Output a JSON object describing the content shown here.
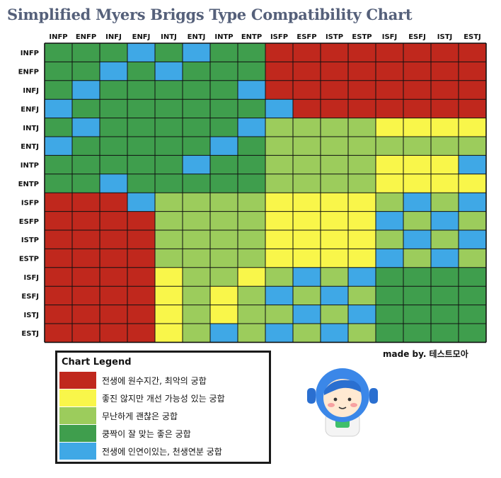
{
  "title": "Simplified Myers Briggs Type Compatibility Chart",
  "credit": "made by. 테스트모아",
  "colors": {
    "R": "#c0281d",
    "Y": "#f9f64a",
    "L": "#9ccc5c",
    "G": "#3f9e4d",
    "B": "#3fa8e6",
    "grid": "#111111"
  },
  "chart_data": {
    "type": "heatmap",
    "title": "Simplified Myers Briggs Type Compatibility Chart",
    "columns": [
      "INFP",
      "ENFP",
      "INFJ",
      "ENFJ",
      "INTJ",
      "ENTJ",
      "INTP",
      "ENTP",
      "ISFP",
      "ESFP",
      "ISTP",
      "ESTP",
      "ISFJ",
      "ESFJ",
      "ISTJ",
      "ESTJ"
    ],
    "rows": [
      "INFP",
      "ENFP",
      "INFJ",
      "ENFJ",
      "INTJ",
      "ENTJ",
      "INTP",
      "ENTP",
      "ISFP",
      "ESFP",
      "ISTP",
      "ESTP",
      "ISFJ",
      "ESFJ",
      "ISTJ",
      "ESTJ"
    ],
    "value_key": {
      "R": "전생에 원수지간, 최악의 궁합",
      "Y": "좋진 않지만 개선 가능성 있는 궁합",
      "L": "무난하게 괜찮은 궁합",
      "G": "쿵짝이 잘 맞는 좋은 궁합",
      "B": "전생에 인연이있는, 천생연분 궁합"
    },
    "matrix": [
      [
        "G",
        "G",
        "G",
        "B",
        "G",
        "B",
        "G",
        "G",
        "R",
        "R",
        "R",
        "R",
        "R",
        "R",
        "R",
        "R"
      ],
      [
        "G",
        "G",
        "B",
        "G",
        "B",
        "G",
        "G",
        "G",
        "R",
        "R",
        "R",
        "R",
        "R",
        "R",
        "R",
        "R"
      ],
      [
        "G",
        "B",
        "G",
        "G",
        "G",
        "G",
        "G",
        "B",
        "R",
        "R",
        "R",
        "R",
        "R",
        "R",
        "R",
        "R"
      ],
      [
        "B",
        "G",
        "G",
        "G",
        "G",
        "G",
        "G",
        "G",
        "B",
        "R",
        "R",
        "R",
        "R",
        "R",
        "R",
        "R"
      ],
      [
        "G",
        "B",
        "G",
        "G",
        "G",
        "G",
        "G",
        "B",
        "L",
        "L",
        "L",
        "L",
        "Y",
        "Y",
        "Y",
        "Y"
      ],
      [
        "B",
        "G",
        "G",
        "G",
        "G",
        "G",
        "B",
        "G",
        "L",
        "L",
        "L",
        "L",
        "L",
        "L",
        "L",
        "L"
      ],
      [
        "G",
        "G",
        "G",
        "G",
        "G",
        "B",
        "G",
        "G",
        "L",
        "L",
        "L",
        "L",
        "Y",
        "Y",
        "Y",
        "B"
      ],
      [
        "G",
        "G",
        "B",
        "G",
        "G",
        "G",
        "G",
        "G",
        "L",
        "L",
        "L",
        "L",
        "Y",
        "Y",
        "Y",
        "Y"
      ],
      [
        "R",
        "R",
        "R",
        "B",
        "L",
        "L",
        "L",
        "L",
        "Y",
        "Y",
        "Y",
        "Y",
        "L",
        "B",
        "L",
        "B"
      ],
      [
        "R",
        "R",
        "R",
        "R",
        "L",
        "L",
        "L",
        "L",
        "Y",
        "Y",
        "Y",
        "Y",
        "B",
        "L",
        "B",
        "L"
      ],
      [
        "R",
        "R",
        "R",
        "R",
        "L",
        "L",
        "L",
        "L",
        "Y",
        "Y",
        "Y",
        "Y",
        "L",
        "B",
        "L",
        "B"
      ],
      [
        "R",
        "R",
        "R",
        "R",
        "L",
        "L",
        "L",
        "L",
        "Y",
        "Y",
        "Y",
        "Y",
        "B",
        "L",
        "B",
        "L"
      ],
      [
        "R",
        "R",
        "R",
        "R",
        "Y",
        "L",
        "L",
        "Y",
        "L",
        "B",
        "L",
        "B",
        "G",
        "G",
        "G",
        "G"
      ],
      [
        "R",
        "R",
        "R",
        "R",
        "Y",
        "L",
        "Y",
        "L",
        "B",
        "L",
        "B",
        "L",
        "G",
        "G",
        "G",
        "G"
      ],
      [
        "R",
        "R",
        "R",
        "R",
        "Y",
        "L",
        "Y",
        "L",
        "L",
        "B",
        "L",
        "B",
        "G",
        "G",
        "G",
        "G"
      ],
      [
        "R",
        "R",
        "R",
        "R",
        "Y",
        "L",
        "B",
        "L",
        "B",
        "L",
        "B",
        "L",
        "G",
        "G",
        "G",
        "G"
      ]
    ]
  },
  "legend": {
    "title": "Chart Legend",
    "items": [
      {
        "key": "R",
        "label": "전생에 원수지간, 최악의 궁합"
      },
      {
        "key": "Y",
        "label": "좋진 않지만 개선 가능성 있는 궁합"
      },
      {
        "key": "L",
        "label": "무난하게 괜찮은 궁합"
      },
      {
        "key": "G",
        "label": "쿵짝이 잘 맞는 좋은 궁합"
      },
      {
        "key": "B",
        "label": "전생에 인연이있는, 천생연분 궁합"
      }
    ]
  },
  "mascot": {
    "icon": "astronaut-mascot-icon",
    "colors": {
      "helmet": "#3b87e8",
      "face": "#ffe9d2",
      "cheek": "#f7a1a1",
      "suit": "#f4f4f4",
      "accent": "#3fbf6a"
    }
  }
}
